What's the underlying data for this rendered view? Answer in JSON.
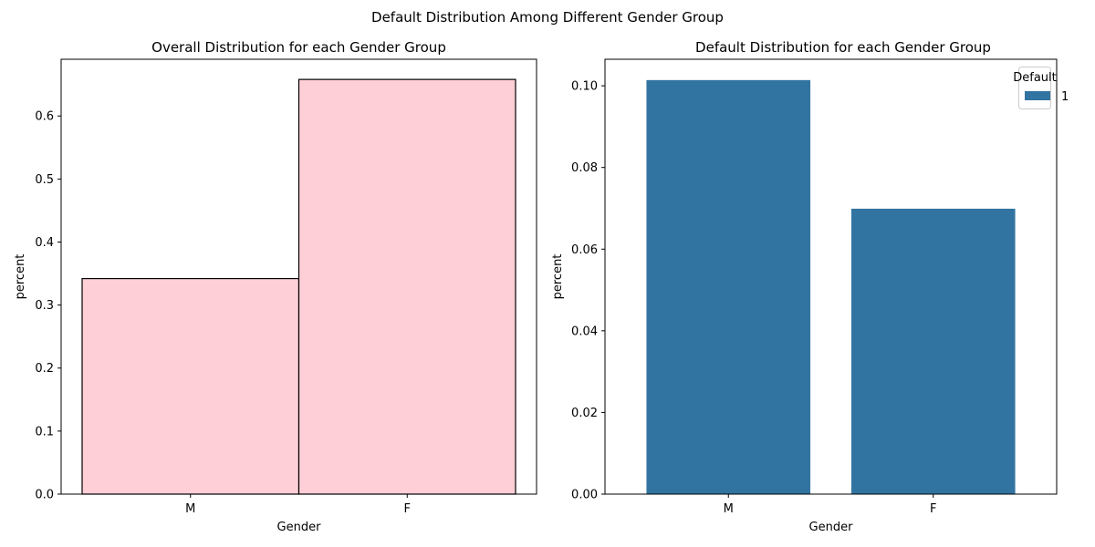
{
  "suptitle": "Default Distribution Among Different Gender Group",
  "chart_data": [
    {
      "type": "bar",
      "title": "Overall Distribution for each Gender Group",
      "xlabel": "Gender",
      "ylabel": "percent",
      "categories": [
        "M",
        "F"
      ],
      "values": [
        0.342,
        0.658
      ],
      "ylim": [
        0,
        0.69
      ],
      "yticks": [
        0.0,
        0.1,
        0.2,
        0.3,
        0.4,
        0.5,
        0.6
      ],
      "ytick_labels": [
        "0.0",
        "0.1",
        "0.2",
        "0.3",
        "0.4",
        "0.5",
        "0.6"
      ],
      "bar_color": "#ffcfd7",
      "edge_color": "#000000",
      "grid": false
    },
    {
      "type": "bar",
      "title": "Default Distribution for each Gender Group",
      "xlabel": "Gender",
      "ylabel": "percent",
      "categories": [
        "M",
        "F"
      ],
      "series": [
        {
          "name": "1",
          "values": [
            0.1014,
            0.0699
          ]
        }
      ],
      "ylim": [
        0,
        0.1065
      ],
      "yticks": [
        0.0,
        0.02,
        0.04,
        0.06,
        0.08,
        0.1
      ],
      "ytick_labels": [
        "0.00",
        "0.02",
        "0.04",
        "0.06",
        "0.08",
        "0.10"
      ],
      "legend": {
        "title": "Default",
        "position": "top-right"
      },
      "bar_color": "#3274a1",
      "grid": false
    }
  ]
}
